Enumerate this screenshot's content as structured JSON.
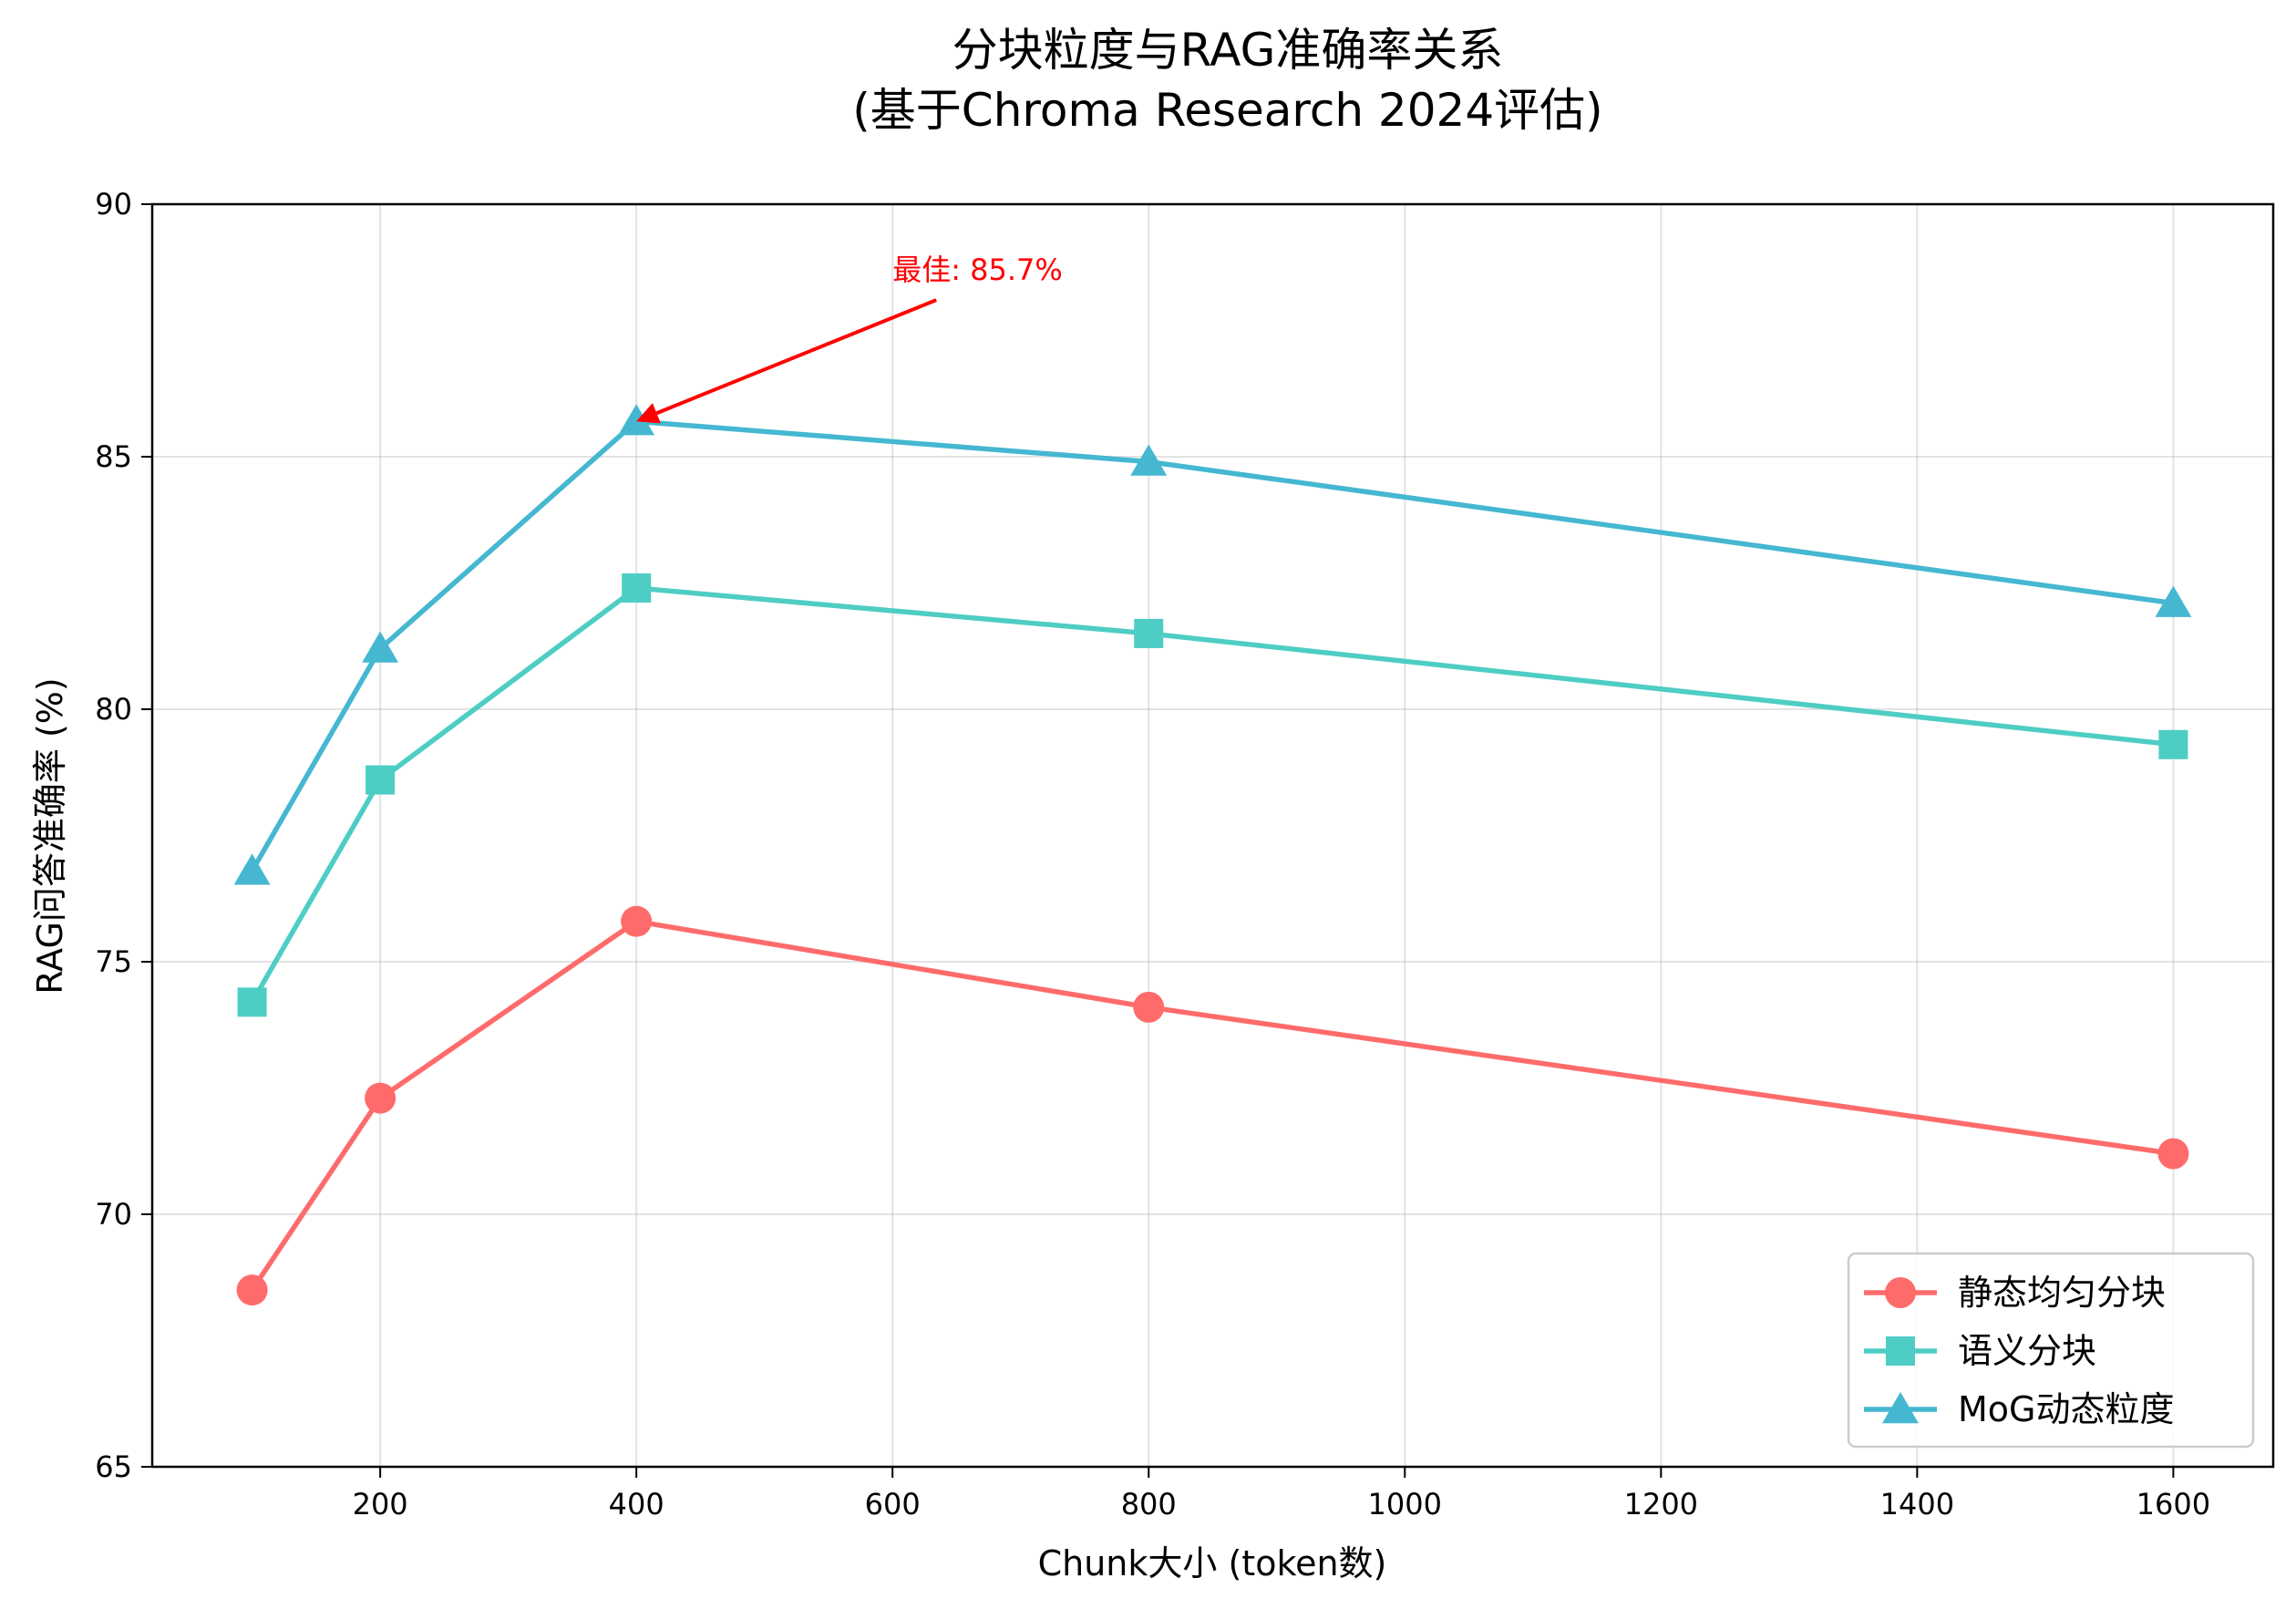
{
  "chart_data": {
    "type": "line",
    "title_lines": [
      "分块粒度与RAG准确率关系",
      "(基于Chroma Research 2024评估)"
    ],
    "xlabel": "Chunk大小 (token数)",
    "ylabel": "RAG问答准确率 (%)",
    "xlim": [
      22,
      1678
    ],
    "ylim": [
      65,
      90
    ],
    "xticks": [
      200,
      400,
      600,
      800,
      1000,
      1200,
      1400,
      1600
    ],
    "yticks": [
      65,
      70,
      75,
      80,
      85,
      90
    ],
    "grid": true,
    "legend_position": "lower-right",
    "x": [
      100,
      200,
      400,
      800,
      1600
    ],
    "series": [
      {
        "name": "静态均匀分块",
        "marker": "circle",
        "color": "#FF6B6B",
        "values": [
          68.5,
          72.3,
          75.8,
          74.1,
          71.2
        ]
      },
      {
        "name": "语义分块",
        "marker": "square",
        "color": "#4ECDC4",
        "values": [
          74.2,
          78.6,
          82.4,
          81.5,
          79.3
        ]
      },
      {
        "name": "MoG动态粒度",
        "marker": "triangle",
        "color": "#45B7D1",
        "values": [
          76.8,
          81.2,
          85.7,
          84.9,
          82.1
        ]
      }
    ],
    "annotation": {
      "text": "最佳: 85.7%",
      "x": 400,
      "y": 85.7,
      "text_x": 600,
      "text_y": 88.5,
      "color": "#FF0000"
    }
  }
}
